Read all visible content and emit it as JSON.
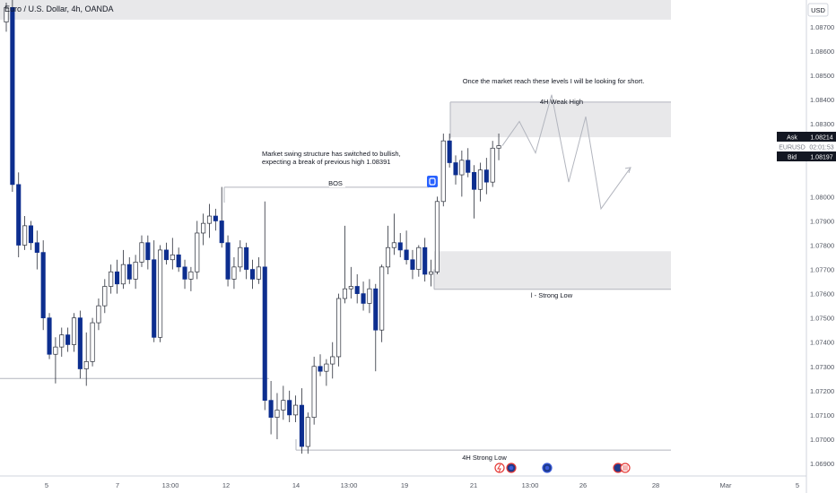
{
  "header": {
    "symbol_title": "Euro / U.S. Dollar, 4h, OANDA",
    "currency_label": "USD"
  },
  "price_panel": {
    "ask_label": "Ask",
    "ask_value": "1.08214",
    "symbol": "EURUSD",
    "countdown": "02:01:53",
    "bid_label": "Bid",
    "bid_value": "1.08197"
  },
  "annotations": {
    "note_short": "Once the market reach these levels I will be looking for short.",
    "note_structure_line1": "Market swing structure has switched to bullish,",
    "note_structure_line2": "expecting a break of  previous high 1.08391",
    "bos_label": "BOS",
    "weak_high_label": "4H Weak High",
    "strong_low_label": "l - Strong Low",
    "strong_low_4h_label": "4H Strong Low"
  },
  "colors": {
    "bearish": "#0d2e8f",
    "bullish": "#ffffff",
    "wick": "#2a2e39",
    "zone": "#e8e8ea",
    "text": "#131722",
    "axis_text": "#505560",
    "grid_line": "#b2b5be"
  },
  "chart_data": {
    "type": "candlestick",
    "title": "Euro / U.S. Dollar, 4h, OANDA",
    "ylabel": "USD",
    "ylim": [
      1.0685,
      1.0885
    ],
    "y_ticks": [
      "1.08700",
      "1.08600",
      "1.08500",
      "1.08400",
      "1.08300",
      "1.08200",
      "1.08000",
      "1.07900",
      "1.07800",
      "1.07700",
      "1.07600",
      "1.07500",
      "1.07400",
      "1.07300",
      "1.07200",
      "1.07100",
      "1.07000",
      "1.06900"
    ],
    "x_ticks": [
      "5",
      "7",
      "13:00",
      "12",
      "14",
      "13:00",
      "19",
      "21",
      "13:00",
      "26",
      "28",
      "Mar",
      "5"
    ],
    "candles": [
      {
        "o": 1.0872,
        "h": 1.088,
        "l": 1.0868,
        "c": 1.0878
      },
      {
        "o": 1.0878,
        "h": 1.0885,
        "l": 1.0802,
        "c": 1.0805
      },
      {
        "o": 1.0805,
        "h": 1.081,
        "l": 1.0775,
        "c": 1.078
      },
      {
        "o": 1.078,
        "h": 1.0792,
        "l": 1.0778,
        "c": 1.0788
      },
      {
        "o": 1.0788,
        "h": 1.079,
        "l": 1.0778,
        "c": 1.0781
      },
      {
        "o": 1.0781,
        "h": 1.0786,
        "l": 1.077,
        "c": 1.0777
      },
      {
        "o": 1.0777,
        "h": 1.0782,
        "l": 1.0745,
        "c": 1.075
      },
      {
        "o": 1.075,
        "h": 1.0752,
        "l": 1.0733,
        "c": 1.0735
      },
      {
        "o": 1.0735,
        "h": 1.0742,
        "l": 1.0723,
        "c": 1.0738
      },
      {
        "o": 1.0738,
        "h": 1.0746,
        "l": 1.0734,
        "c": 1.0743
      },
      {
        "o": 1.0743,
        "h": 1.0746,
        "l": 1.0736,
        "c": 1.0739
      },
      {
        "o": 1.0739,
        "h": 1.0752,
        "l": 1.0736,
        "c": 1.075
      },
      {
        "o": 1.075,
        "h": 1.0753,
        "l": 1.0725,
        "c": 1.0729
      },
      {
        "o": 1.0729,
        "h": 1.0744,
        "l": 1.0722,
        "c": 1.0732
      },
      {
        "o": 1.0732,
        "h": 1.075,
        "l": 1.073,
        "c": 1.0748
      },
      {
        "o": 1.0748,
        "h": 1.0758,
        "l": 1.0745,
        "c": 1.0755
      },
      {
        "o": 1.0755,
        "h": 1.0766,
        "l": 1.0752,
        "c": 1.0763
      },
      {
        "o": 1.0763,
        "h": 1.0772,
        "l": 1.076,
        "c": 1.0769
      },
      {
        "o": 1.0769,
        "h": 1.0774,
        "l": 1.076,
        "c": 1.0764
      },
      {
        "o": 1.0764,
        "h": 1.0778,
        "l": 1.0762,
        "c": 1.0772
      },
      {
        "o": 1.0772,
        "h": 1.0775,
        "l": 1.0764,
        "c": 1.0766
      },
      {
        "o": 1.0766,
        "h": 1.0776,
        "l": 1.0762,
        "c": 1.0773
      },
      {
        "o": 1.0773,
        "h": 1.0784,
        "l": 1.0771,
        "c": 1.0781
      },
      {
        "o": 1.0781,
        "h": 1.0784,
        "l": 1.077,
        "c": 1.0774
      },
      {
        "o": 1.0774,
        "h": 1.0782,
        "l": 1.074,
        "c": 1.0742
      },
      {
        "o": 1.0742,
        "h": 1.078,
        "l": 1.074,
        "c": 1.0778
      },
      {
        "o": 1.0778,
        "h": 1.0781,
        "l": 1.0772,
        "c": 1.0774
      },
      {
        "o": 1.0774,
        "h": 1.0783,
        "l": 1.077,
        "c": 1.0776
      },
      {
        "o": 1.0776,
        "h": 1.0779,
        "l": 1.0769,
        "c": 1.0771
      },
      {
        "o": 1.0771,
        "h": 1.0774,
        "l": 1.0762,
        "c": 1.0766
      },
      {
        "o": 1.0766,
        "h": 1.0771,
        "l": 1.0761,
        "c": 1.0769
      },
      {
        "o": 1.0769,
        "h": 1.079,
        "l": 1.0766,
        "c": 1.0785
      },
      {
        "o": 1.0785,
        "h": 1.0793,
        "l": 1.078,
        "c": 1.0789
      },
      {
        "o": 1.0789,
        "h": 1.0797,
        "l": 1.0783,
        "c": 1.0792
      },
      {
        "o": 1.0792,
        "h": 1.0795,
        "l": 1.0786,
        "c": 1.079
      },
      {
        "o": 1.079,
        "h": 1.0804,
        "l": 1.0779,
        "c": 1.0781
      },
      {
        "o": 1.0781,
        "h": 1.0784,
        "l": 1.0763,
        "c": 1.0766
      },
      {
        "o": 1.0766,
        "h": 1.0775,
        "l": 1.0762,
        "c": 1.0771
      },
      {
        "o": 1.0771,
        "h": 1.0782,
        "l": 1.0769,
        "c": 1.0779
      },
      {
        "o": 1.0779,
        "h": 1.0781,
        "l": 1.0766,
        "c": 1.077
      },
      {
        "o": 1.077,
        "h": 1.0774,
        "l": 1.0762,
        "c": 1.0766
      },
      {
        "o": 1.0766,
        "h": 1.0775,
        "l": 1.0764,
        "c": 1.0771
      },
      {
        "o": 1.0771,
        "h": 1.0798,
        "l": 1.0712,
        "c": 1.0716
      },
      {
        "o": 1.0716,
        "h": 1.0724,
        "l": 1.0702,
        "c": 1.0709
      },
      {
        "o": 1.0709,
        "h": 1.0719,
        "l": 1.07,
        "c": 1.0712
      },
      {
        "o": 1.0712,
        "h": 1.0722,
        "l": 1.0708,
        "c": 1.0716
      },
      {
        "o": 1.0716,
        "h": 1.072,
        "l": 1.0707,
        "c": 1.071
      },
      {
        "o": 1.071,
        "h": 1.0718,
        "l": 1.0707,
        "c": 1.0714
      },
      {
        "o": 1.0714,
        "h": 1.0721,
        "l": 1.0694,
        "c": 1.0697
      },
      {
        "o": 1.0697,
        "h": 1.0711,
        "l": 1.0694,
        "c": 1.0709
      },
      {
        "o": 1.0709,
        "h": 1.0734,
        "l": 1.0706,
        "c": 1.073
      },
      {
        "o": 1.073,
        "h": 1.0735,
        "l": 1.0726,
        "c": 1.0728
      },
      {
        "o": 1.0728,
        "h": 1.0733,
        "l": 1.0722,
        "c": 1.0731
      },
      {
        "o": 1.0731,
        "h": 1.074,
        "l": 1.0725,
        "c": 1.0734
      },
      {
        "o": 1.0734,
        "h": 1.076,
        "l": 1.073,
        "c": 1.0758
      },
      {
        "o": 1.0758,
        "h": 1.0788,
        "l": 1.0756,
        "c": 1.0762
      },
      {
        "o": 1.0762,
        "h": 1.0771,
        "l": 1.0758,
        "c": 1.0763
      },
      {
        "o": 1.0763,
        "h": 1.0768,
        "l": 1.0756,
        "c": 1.076
      },
      {
        "o": 1.076,
        "h": 1.0765,
        "l": 1.0753,
        "c": 1.0756
      },
      {
        "o": 1.0756,
        "h": 1.0766,
        "l": 1.0752,
        "c": 1.0762
      },
      {
        "o": 1.0762,
        "h": 1.0764,
        "l": 1.0728,
        "c": 1.0745
      },
      {
        "o": 1.0745,
        "h": 1.0772,
        "l": 1.074,
        "c": 1.0771
      },
      {
        "o": 1.0771,
        "h": 1.0788,
        "l": 1.0768,
        "c": 1.0779
      },
      {
        "o": 1.0779,
        "h": 1.0793,
        "l": 1.0776,
        "c": 1.0781
      },
      {
        "o": 1.0781,
        "h": 1.0785,
        "l": 1.0775,
        "c": 1.0778
      },
      {
        "o": 1.0778,
        "h": 1.0786,
        "l": 1.0772,
        "c": 1.0774
      },
      {
        "o": 1.0774,
        "h": 1.0778,
        "l": 1.0766,
        "c": 1.077
      },
      {
        "o": 1.077,
        "h": 1.078,
        "l": 1.0767,
        "c": 1.0779
      },
      {
        "o": 1.0779,
        "h": 1.0783,
        "l": 1.0765,
        "c": 1.0768
      },
      {
        "o": 1.0768,
        "h": 1.0774,
        "l": 1.0763,
        "c": 1.0769
      },
      {
        "o": 1.0769,
        "h": 1.08,
        "l": 1.0768,
        "c": 1.0798
      },
      {
        "o": 1.0798,
        "h": 1.0826,
        "l": 1.0796,
        "c": 1.0823
      },
      {
        "o": 1.0823,
        "h": 1.0826,
        "l": 1.0812,
        "c": 1.0814
      },
      {
        "o": 1.0814,
        "h": 1.0817,
        "l": 1.0805,
        "c": 1.0809
      },
      {
        "o": 1.0809,
        "h": 1.0819,
        "l": 1.08,
        "c": 1.0815
      },
      {
        "o": 1.0815,
        "h": 1.082,
        "l": 1.0808,
        "c": 1.081
      },
      {
        "o": 1.081,
        "h": 1.0813,
        "l": 1.0791,
        "c": 1.0803
      },
      {
        "o": 1.0803,
        "h": 1.0814,
        "l": 1.0798,
        "c": 1.0811
      },
      {
        "o": 1.0811,
        "h": 1.0816,
        "l": 1.0801,
        "c": 1.0806
      },
      {
        "o": 1.0806,
        "h": 1.0823,
        "l": 1.0804,
        "c": 1.082
      },
      {
        "o": 1.082,
        "h": 1.0826,
        "l": 1.0815,
        "c": 1.0821
      }
    ],
    "levels": [
      {
        "label": "4H Weak High",
        "price": 1.0839,
        "zone": [
          1.08245,
          1.08391
        ]
      },
      {
        "label": "BOS",
        "price": 1.08039
      },
      {
        "label": "l - Strong Low",
        "price": 1.07618,
        "zone": [
          1.07618,
          1.07775
        ]
      },
      {
        "label": "4H Strong Low",
        "price": 1.06955
      },
      {
        "label": "",
        "price": 1.0725
      },
      {
        "label": "",
        "zone": [
          1.0873,
          1.0885
        ]
      }
    ],
    "projection": [
      1.0821,
      1.0831,
      1.0818,
      1.0842,
      1.0806,
      1.0833,
      1.0795,
      1.0812
    ],
    "grid": false
  }
}
